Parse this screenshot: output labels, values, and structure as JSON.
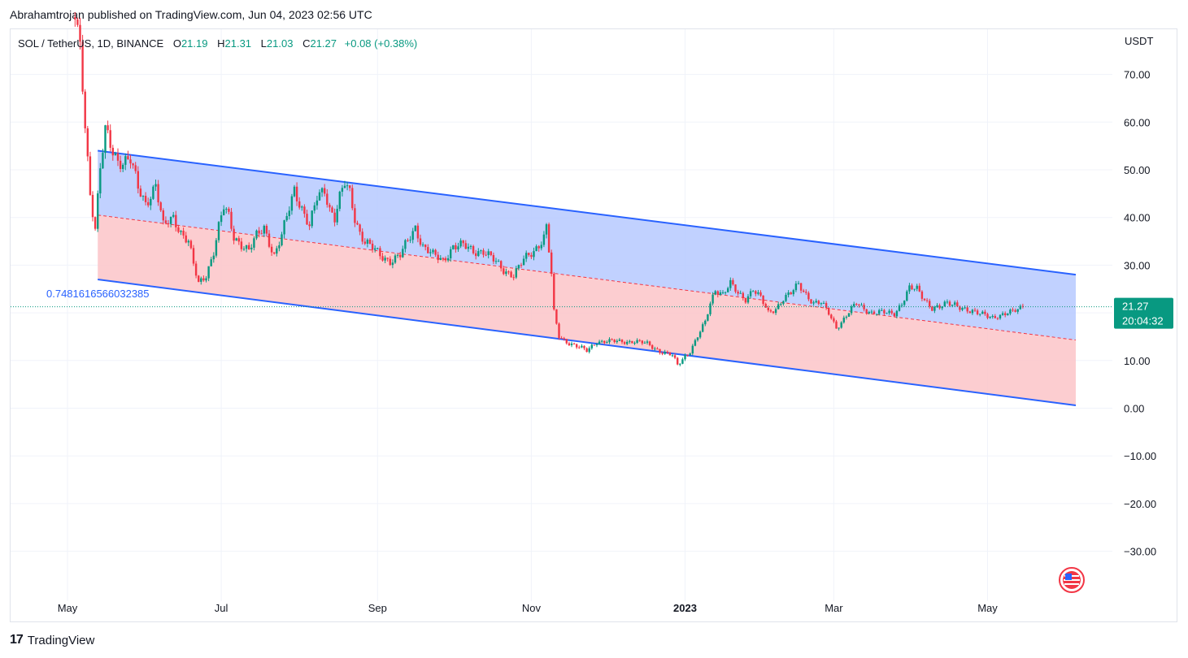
{
  "header": {
    "published_text": "Abrahamtrojan published on TradingView.com, Jun 04, 2023 02:56 UTC"
  },
  "legend": {
    "symbol": "SOL / TetherUS, 1D, BINANCE",
    "open_label": "O",
    "open": "21.19",
    "high_label": "H",
    "high": "21.31",
    "low_label": "L",
    "low": "21.03",
    "close_label": "C",
    "close": "21.27",
    "change": "+0.08 (+0.38%)"
  },
  "footer": {
    "brand": "TradingView",
    "logo": "17"
  },
  "price_axis": {
    "currency": "USDT"
  },
  "price_tag": {
    "price": "21.27",
    "countdown": "20:04:32",
    "color": "#089981"
  },
  "channel_label": "0.7481616566032385",
  "colors": {
    "up": "#089981",
    "down": "#f23645",
    "channel_line": "#2962ff",
    "upper_fill": "#b6c9ff",
    "lower_fill": "#fbc4c8",
    "midline": "#f23645"
  },
  "chart_data": {
    "type": "candlestick",
    "title": "SOL / TetherUS, 1D, BINANCE",
    "ylim": [
      -40,
      80
    ],
    "y_ticks": [
      "70.00",
      "60.00",
      "50.00",
      "40.00",
      "30.00",
      "20.00",
      "10.00",
      "0.00",
      "−10.00",
      "−20.00",
      "−30.00"
    ],
    "y_tick_values": [
      70,
      60,
      50,
      40,
      30,
      20,
      10,
      0,
      -10,
      -20,
      -30
    ],
    "x_ticks": [
      "May",
      "Jul",
      "Sep",
      "Nov",
      "2023",
      "Mar",
      "May"
    ],
    "x_tick_days": [
      0,
      61,
      123,
      184,
      245,
      304,
      365
    ],
    "last_price": 21.27,
    "channel": {
      "start_day": 12,
      "end_day": 400,
      "upper": [
        54,
        28
      ],
      "mid": [
        40.5,
        14.3
      ],
      "lower": [
        27,
        0.6
      ]
    },
    "price_path": [
      [
        3,
        82
      ],
      [
        5,
        75
      ],
      [
        7,
        60
      ],
      [
        9,
        45
      ],
      [
        11,
        38
      ],
      [
        13,
        50
      ],
      [
        15,
        58
      ],
      [
        17,
        55
      ],
      [
        20,
        52
      ],
      [
        25,
        52
      ],
      [
        28,
        46
      ],
      [
        31,
        43
      ],
      [
        35,
        47
      ],
      [
        38,
        38
      ],
      [
        42,
        40
      ],
      [
        45,
        37
      ],
      [
        48,
        35
      ],
      [
        50,
        30
      ],
      [
        52,
        26
      ],
      [
        55,
        28
      ],
      [
        58,
        33
      ],
      [
        60,
        38
      ],
      [
        62,
        42
      ],
      [
        64,
        40
      ],
      [
        66,
        36
      ],
      [
        68,
        35
      ],
      [
        72,
        33
      ],
      [
        75,
        36
      ],
      [
        78,
        38
      ],
      [
        80,
        35
      ],
      [
        82,
        32
      ],
      [
        85,
        36
      ],
      [
        88,
        42
      ],
      [
        90,
        46
      ],
      [
        93,
        42
      ],
      [
        96,
        38
      ],
      [
        99,
        44
      ],
      [
        102,
        46
      ],
      [
        104,
        42
      ],
      [
        106,
        40
      ],
      [
        108,
        44
      ],
      [
        110,
        47
      ],
      [
        112,
        45
      ],
      [
        114,
        40
      ],
      [
        116,
        37
      ],
      [
        118,
        35
      ],
      [
        120,
        34
      ],
      [
        124,
        32
      ],
      [
        128,
        31
      ],
      [
        132,
        32
      ],
      [
        136,
        36
      ],
      [
        138,
        38
      ],
      [
        141,
        34
      ],
      [
        145,
        32
      ],
      [
        149,
        31
      ],
      [
        153,
        34
      ],
      [
        157,
        34
      ],
      [
        161,
        33
      ],
      [
        165,
        33
      ],
      [
        169,
        31
      ],
      [
        173,
        29
      ],
      [
        177,
        28
      ],
      [
        181,
        31
      ],
      [
        185,
        33
      ],
      [
        189,
        36
      ],
      [
        190,
        38
      ],
      [
        192,
        28
      ],
      [
        193,
        20
      ],
      [
        195,
        15
      ],
      [
        198,
        14
      ],
      [
        202,
        13
      ],
      [
        206,
        12
      ],
      [
        210,
        14
      ],
      [
        215,
        14
      ],
      [
        220,
        14
      ],
      [
        225,
        14
      ],
      [
        230,
        13.5
      ],
      [
        235,
        12
      ],
      [
        240,
        11
      ],
      [
        242,
        9
      ],
      [
        245,
        11
      ],
      [
        247,
        12
      ],
      [
        250,
        15
      ],
      [
        253,
        18
      ],
      [
        255,
        22
      ],
      [
        257,
        25
      ],
      [
        260,
        24
      ],
      [
        263,
        26
      ],
      [
        266,
        24
      ],
      [
        269,
        23
      ],
      [
        272,
        25
      ],
      [
        275,
        23
      ],
      [
        278,
        20
      ],
      [
        281,
        21
      ],
      [
        284,
        23
      ],
      [
        287,
        24
      ],
      [
        290,
        26
      ],
      [
        293,
        24
      ],
      [
        296,
        22
      ],
      [
        299,
        22
      ],
      [
        302,
        20
      ],
      [
        305,
        17
      ],
      [
        307,
        18
      ],
      [
        310,
        20
      ],
      [
        313,
        22
      ],
      [
        316,
        21
      ],
      [
        319,
        20
      ],
      [
        322,
        20
      ],
      [
        325,
        20
      ],
      [
        328,
        20
      ],
      [
        331,
        22
      ],
      [
        334,
        25
      ],
      [
        337,
        25
      ],
      [
        340,
        23
      ],
      [
        343,
        21
      ],
      [
        346,
        21
      ],
      [
        349,
        22
      ],
      [
        352,
        22
      ],
      [
        355,
        21
      ],
      [
        358,
        20
      ],
      [
        361,
        20
      ],
      [
        364,
        20
      ],
      [
        367,
        19
      ],
      [
        370,
        19
      ],
      [
        373,
        20
      ],
      [
        376,
        21
      ],
      [
        379,
        21.27
      ]
    ]
  }
}
